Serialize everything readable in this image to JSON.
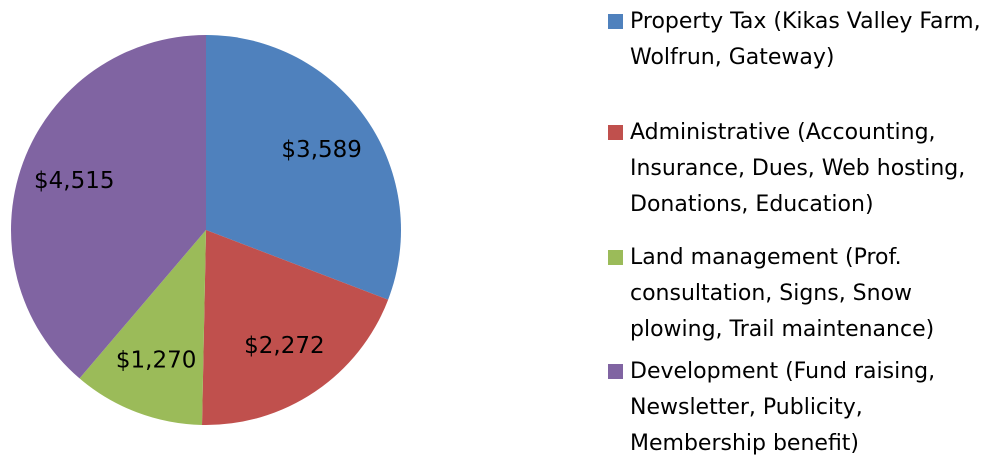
{
  "chart_data": {
    "type": "pie",
    "categories": [
      "Property Tax (Kikas Valley Farm, Wolfrun, Gateway)",
      "Administrative (Accounting, Insurance, Dues, Web hosting, Donations, Education)",
      "Land management (Prof. consultation, Signs, Snow plowing, Trail maintenance)",
      "Development  (Fund raising, Newsletter, Publicity, Membership benefit)"
    ],
    "values": [
      3589,
      2272,
      1270,
      4515
    ],
    "value_labels": [
      "$3,589",
      "$2,272",
      "$1,270",
      "$4,515"
    ],
    "colors": [
      "#4f81bd",
      "#c0504d",
      "#9bbb59",
      "#8064a2"
    ],
    "legend": "right"
  }
}
